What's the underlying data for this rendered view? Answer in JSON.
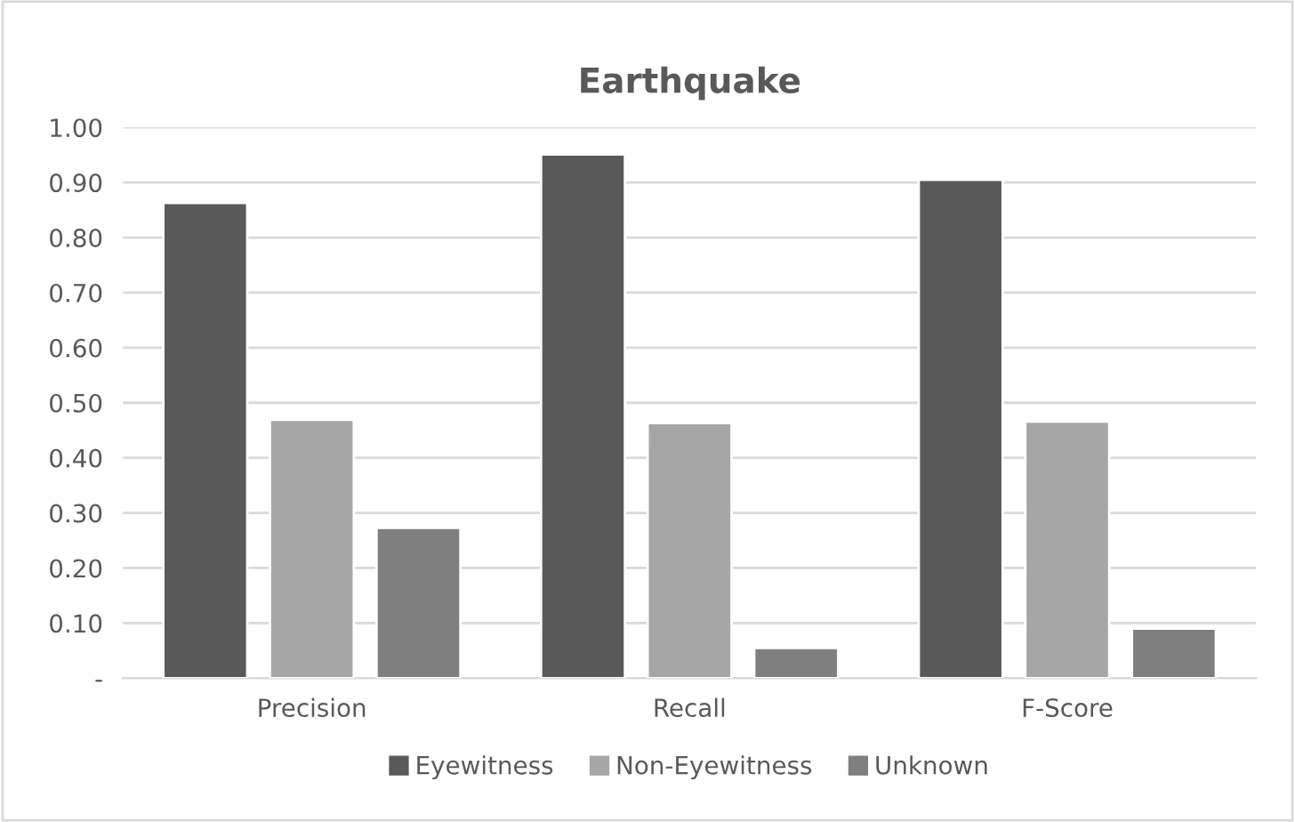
{
  "chart_data": {
    "type": "bar",
    "title": "Earthquake",
    "categories": [
      "Precision",
      "Recall",
      "F-Score"
    ],
    "series": [
      {
        "name": "Eyewitness",
        "color": "#595959",
        "values": [
          0.863,
          0.951,
          0.905
        ]
      },
      {
        "name": "Non-Eyewitness",
        "color": "#a6a6a6",
        "values": [
          0.469,
          0.463,
          0.466
        ]
      },
      {
        "name": "Unknown",
        "color": "#7f7f7f",
        "values": [
          0.273,
          0.055,
          0.09
        ]
      }
    ],
    "ylim": [
      0,
      1.0
    ],
    "yticks": [
      {
        "value": 0,
        "label": "-"
      },
      {
        "value": 0.1,
        "label": "0.10"
      },
      {
        "value": 0.2,
        "label": "0.20"
      },
      {
        "value": 0.3,
        "label": "0.30"
      },
      {
        "value": 0.4,
        "label": "0.40"
      },
      {
        "value": 0.5,
        "label": "0.50"
      },
      {
        "value": 0.6,
        "label": "0.60"
      },
      {
        "value": 0.7,
        "label": "0.70"
      },
      {
        "value": 0.8,
        "label": "0.80"
      },
      {
        "value": 0.9,
        "label": "0.90"
      },
      {
        "value": 1.0,
        "label": "1.00"
      }
    ],
    "grid": "y",
    "legend": "bottom"
  }
}
